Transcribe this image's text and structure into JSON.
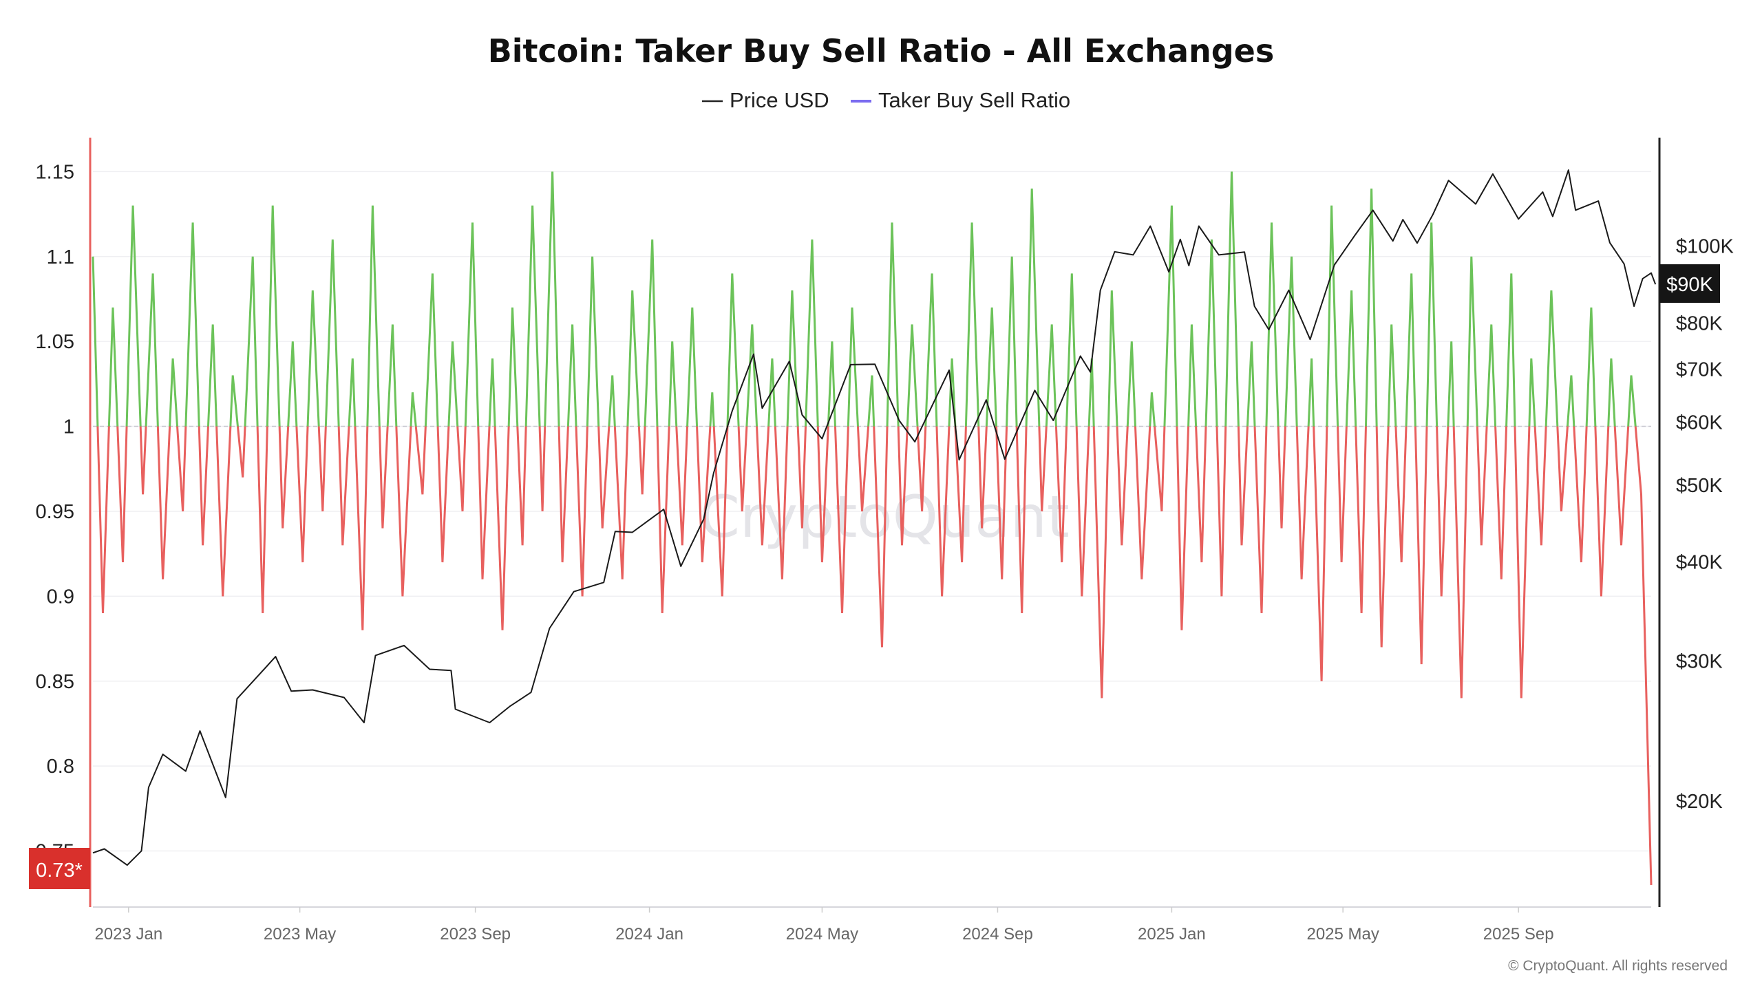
{
  "chart_data": {
    "type": "line",
    "title": "Bitcoin: Taker Buy Sell Ratio - All Exchanges",
    "legend": [
      {
        "name": "Price USD",
        "color": "#222222"
      },
      {
        "name": "Taker Buy Sell Ratio",
        "color": "#7b6cf0"
      }
    ],
    "legend_position": "top-center",
    "x_range": [
      "2022-12-07",
      "2025-12-03"
    ],
    "x_ticks": [
      "2023 Jan",
      "2023 May",
      "2023 Sep",
      "2024 Jan",
      "2024 May",
      "2024 Sep",
      "2025 Jan",
      "2025 May",
      "2025 Sep"
    ],
    "x_tick_dates": [
      "2023-01-01",
      "2023-05-01",
      "2023-09-01",
      "2024-01-01",
      "2024-05-01",
      "2024-09-01",
      "2025-01-01",
      "2025-05-01",
      "2025-09-01"
    ],
    "y_left": {
      "ticks": [
        "1.15",
        "1.1",
        "1.05",
        "1",
        "0.95",
        "0.9",
        "0.85",
        "0.8",
        "0.75"
      ],
      "tick_values": [
        1.15,
        1.1,
        1.05,
        1,
        0.95,
        0.9,
        0.85,
        0.8,
        0.75
      ],
      "range": [
        0.717,
        1.17
      ],
      "baseline": 1
    },
    "y_right": {
      "scale": "log",
      "ticks": [
        "$100K",
        "$80K",
        "$70K",
        "$60K",
        "$50K",
        "$40K",
        "$30K",
        "$20K"
      ],
      "tick_values": [
        100000,
        80000,
        70000,
        60000,
        50000,
        40000,
        30000,
        20000
      ],
      "range": [
        14700,
        137000
      ]
    },
    "grid": true,
    "colors": {
      "above": "#6cc35a",
      "below": "#e8605e",
      "price": "#1a1a1a"
    },
    "current_ratio_label": "0.73*",
    "current_price_label": "$90K",
    "ratio_interval": "weekly",
    "ratio_series": {
      "name": "Taker Buy Sell Ratio",
      "start": "2022-12-07",
      "values": [
        1.1,
        0.89,
        1.07,
        0.92,
        1.13,
        0.96,
        1.09,
        0.91,
        1.04,
        0.95,
        1.12,
        0.93,
        1.06,
        0.9,
        1.03,
        0.97,
        1.1,
        0.89,
        1.13,
        0.94,
        1.05,
        0.92,
        1.08,
        0.95,
        1.11,
        0.93,
        1.04,
        0.88,
        1.13,
        0.94,
        1.06,
        0.9,
        1.02,
        0.96,
        1.09,
        0.92,
        1.05,
        0.95,
        1.12,
        0.91,
        1.04,
        0.88,
        1.07,
        0.93,
        1.13,
        0.95,
        1.15,
        0.92,
        1.06,
        0.9,
        1.1,
        0.94,
        1.03,
        0.91,
        1.08,
        0.96,
        1.11,
        0.89,
        1.05,
        0.93,
        1.07,
        0.92,
        1.02,
        0.9,
        1.09,
        0.95,
        1.06,
        0.93,
        1.04,
        0.91,
        1.08,
        0.94,
        1.11,
        0.92,
        1.05,
        0.89,
        1.07,
        0.95,
        1.03,
        0.87,
        1.12,
        0.93,
        1.06,
        0.95,
        1.09,
        0.9,
        1.04,
        0.92,
        1.12,
        0.94,
        1.07,
        0.91,
        1.1,
        0.89,
        1.14,
        0.95,
        1.06,
        0.92,
        1.09,
        0.9,
        1.04,
        0.84,
        1.08,
        0.93,
        1.05,
        0.91,
        1.02,
        0.95,
        1.13,
        0.88,
        1.06,
        0.92,
        1.11,
        0.9,
        1.15,
        0.93,
        1.05,
        0.89,
        1.12,
        0.94,
        1.1,
        0.91,
        1.04,
        0.85,
        1.13,
        0.92,
        1.08,
        0.89,
        1.14,
        0.87,
        1.06,
        0.92,
        1.09,
        0.86,
        1.12,
        0.9,
        1.05,
        0.84,
        1.1,
        0.93,
        1.06,
        0.91,
        1.09,
        0.84,
        1.04,
        0.93,
        1.08,
        0.95,
        1.03,
        0.92,
        1.07,
        0.9,
        1.04,
        0.93,
        1.03,
        0.96,
        0.73
      ]
    },
    "price_series": {
      "name": "Price USD",
      "points": [
        [
          "2022-12-07",
          17200
        ],
        [
          "2022-12-15",
          17400
        ],
        [
          "2022-12-31",
          16600
        ],
        [
          "2023-01-10",
          17300
        ],
        [
          "2023-01-15",
          20800
        ],
        [
          "2023-01-25",
          22900
        ],
        [
          "2023-02-10",
          21800
        ],
        [
          "2023-02-20",
          24500
        ],
        [
          "2023-03-10",
          20200
        ],
        [
          "2023-03-18",
          26900
        ],
        [
          "2023-03-30",
          28400
        ],
        [
          "2023-04-14",
          30400
        ],
        [
          "2023-04-25",
          27500
        ],
        [
          "2023-05-10",
          27600
        ],
        [
          "2023-06-01",
          27000
        ],
        [
          "2023-06-15",
          25100
        ],
        [
          "2023-06-23",
          30500
        ],
        [
          "2023-07-13",
          31400
        ],
        [
          "2023-07-31",
          29300
        ],
        [
          "2023-08-15",
          29200
        ],
        [
          "2023-08-18",
          26100
        ],
        [
          "2023-09-11",
          25100
        ],
        [
          "2023-09-25",
          26300
        ],
        [
          "2023-10-10",
          27400
        ],
        [
          "2023-10-23",
          33000
        ],
        [
          "2023-11-09",
          36700
        ],
        [
          "2023-11-30",
          37700
        ],
        [
          "2023-12-08",
          43700
        ],
        [
          "2023-12-20",
          43600
        ],
        [
          "2024-01-11",
          46600
        ],
        [
          "2024-01-23",
          39500
        ],
        [
          "2024-02-08",
          45300
        ],
        [
          "2024-02-15",
          51800
        ],
        [
          "2024-02-28",
          62000
        ],
        [
          "2024-03-14",
          73100
        ],
        [
          "2024-03-20",
          62500
        ],
        [
          "2024-04-08",
          71600
        ],
        [
          "2024-04-17",
          61300
        ],
        [
          "2024-05-01",
          57200
        ],
        [
          "2024-05-21",
          70900
        ],
        [
          "2024-06-07",
          71000
        ],
        [
          "2024-06-24",
          60300
        ],
        [
          "2024-07-05",
          56700
        ],
        [
          "2024-07-29",
          69800
        ],
        [
          "2024-08-05",
          53800
        ],
        [
          "2024-08-24",
          64000
        ],
        [
          "2024-09-06",
          53900
        ],
        [
          "2024-09-27",
          65800
        ],
        [
          "2024-10-10",
          60300
        ],
        [
          "2024-10-29",
          72700
        ],
        [
          "2024-11-05",
          69400
        ],
        [
          "2024-11-12",
          88000
        ],
        [
          "2024-11-22",
          98400
        ],
        [
          "2024-12-05",
          97500
        ],
        [
          "2024-12-17",
          106000
        ],
        [
          "2024-12-30",
          92800
        ],
        [
          "2025-01-07",
          102000
        ],
        [
          "2025-01-13",
          94500
        ],
        [
          "2025-01-20",
          106000
        ],
        [
          "2025-02-03",
          97500
        ],
        [
          "2025-02-21",
          98300
        ],
        [
          "2025-02-28",
          84000
        ],
        [
          "2025-03-10",
          78500
        ],
        [
          "2025-03-24",
          88000
        ],
        [
          "2025-04-08",
          76300
        ],
        [
          "2025-04-25",
          94700
        ],
        [
          "2025-05-09",
          103000
        ],
        [
          "2025-05-22",
          111000
        ],
        [
          "2025-06-05",
          101500
        ],
        [
          "2025-06-12",
          108000
        ],
        [
          "2025-06-22",
          100900
        ],
        [
          "2025-07-03",
          109600
        ],
        [
          "2025-07-14",
          121000
        ],
        [
          "2025-08-02",
          113000
        ],
        [
          "2025-08-14",
          123300
        ],
        [
          "2025-09-01",
          108200
        ],
        [
          "2025-09-18",
          117000
        ],
        [
          "2025-09-25",
          109000
        ],
        [
          "2025-10-06",
          124700
        ],
        [
          "2025-10-11",
          111000
        ],
        [
          "2025-10-27",
          114000
        ],
        [
          "2025-11-04",
          101000
        ],
        [
          "2025-11-14",
          95000
        ],
        [
          "2025-11-21",
          84000
        ],
        [
          "2025-11-27",
          91000
        ],
        [
          "2025-12-03",
          92500
        ],
        [
          "2025-12-06",
          89500
        ]
      ]
    }
  },
  "watermark": "CryptoQuant",
  "footer": "© CryptoQuant. All rights reserved"
}
